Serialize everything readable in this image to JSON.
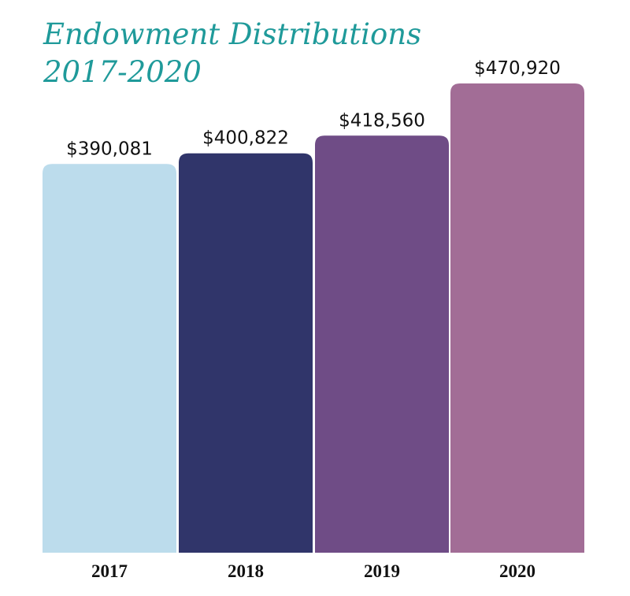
{
  "chart_data": {
    "type": "bar",
    "title_lines": [
      "Endowment Distributions",
      "2017-2020"
    ],
    "categories": [
      "2017",
      "2018",
      "2019",
      "2020"
    ],
    "values": [
      390081,
      400822,
      418560,
      470920
    ],
    "value_labels": [
      "$390,081",
      "$400,822",
      "$418,560",
      "$470,920"
    ],
    "colors": [
      "#bcdcec",
      "#30356a",
      "#6f4c86",
      "#a26d96"
    ],
    "title_color": "#1f9a9a",
    "grid": false,
    "legend": "none"
  }
}
